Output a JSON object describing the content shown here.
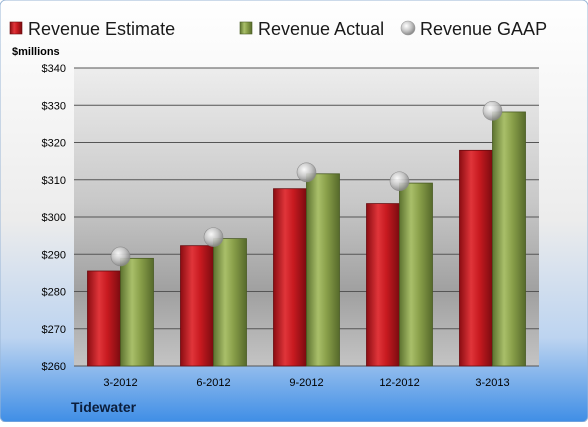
{
  "chart_data": {
    "type": "bar",
    "company": "Tidewater",
    "unit_label": "$millions",
    "categories": [
      "3-2012",
      "6-2012",
      "9-2012",
      "12-2012",
      "3-2013"
    ],
    "series": [
      {
        "name": "Revenue Estimate",
        "type": "bar",
        "color": "#d11f25",
        "values": [
          285.5,
          292.3,
          307.6,
          303.6,
          317.9
        ]
      },
      {
        "name": "Revenue Actual",
        "type": "bar",
        "color": "#8ea44f",
        "values": [
          288.9,
          294.2,
          311.6,
          309.1,
          328.2
        ]
      },
      {
        "name": "Revenue GAAP",
        "type": "marker",
        "color": "#b8b8b8",
        "values": [
          289.4,
          294.6,
          312.0,
          309.6,
          328.5
        ]
      }
    ],
    "y_ticks": [
      "$260",
      "$270",
      "$280",
      "$290",
      "$300",
      "$310",
      "$320",
      "$330",
      "$340"
    ],
    "ylim": [
      260,
      340
    ],
    "grid": true,
    "legend_position": "top"
  }
}
